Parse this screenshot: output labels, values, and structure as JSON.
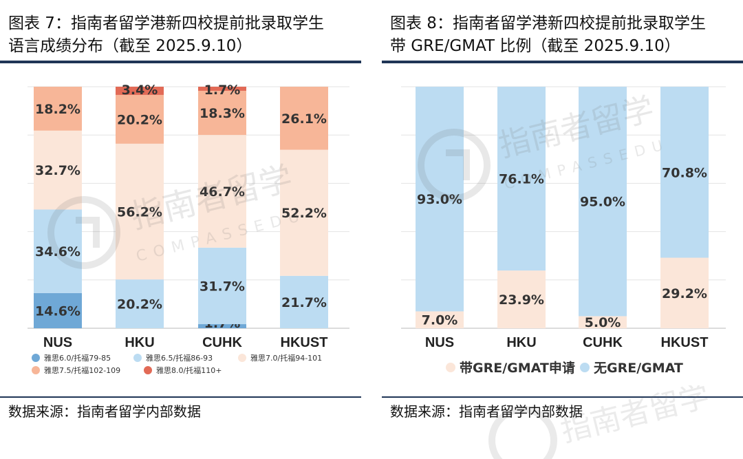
{
  "left": {
    "title": "图表 7：指南者留学港新四校提前批录取学生\n语言成绩分布（截至 2025.9.10）",
    "source": "数据来源：指南者留学内部数据"
  },
  "right": {
    "title": "图表 8：指南者留学港新四校提前批录取学生\n带 GRE/GMAT 比例（截至 2025.9.10）",
    "source": "数据来源：指南者留学内部数据"
  },
  "watermark": {
    "cn": "指南者留学",
    "en": "COMPASSEDU"
  },
  "chart_data": [
    {
      "type": "bar",
      "stacked": true,
      "categories": [
        "NUS",
        "HKU",
        "CUHK",
        "HKUST"
      ],
      "series": [
        {
          "name": "雅思6.0/托福79-85",
          "color": "#6fa8d6",
          "values": [
            14.6,
            0,
            0,
            0
          ],
          "labels": [
            "14.6%",
            "",
            "",
            ""
          ]
        },
        {
          "name": "雅思6.5/托福86-93",
          "color": "#bcdcf2",
          "values": [
            34.6,
            20.2,
            31.7,
            21.7
          ],
          "labels": [
            "34.6%",
            "20.2%",
            "31.7%",
            "21.7%"
          ]
        },
        {
          "name": "雅思7.0/托福94-101",
          "color": "#fbe6d9",
          "values": [
            32.7,
            56.2,
            46.7,
            52.2
          ],
          "labels": [
            "32.7%",
            "56.2%",
            "46.7%",
            "52.2%"
          ]
        },
        {
          "name": "雅思7.5/托福102-109",
          "color": "#f7b698",
          "values": [
            18.2,
            20.2,
            18.3,
            26.1
          ],
          "labels": [
            "18.2%",
            "20.2%",
            "18.3%",
            "26.1%"
          ]
        },
        {
          "name": "雅思8.0/托福110+",
          "color": "#e26a56",
          "values": [
            0,
            3.4,
            1.7,
            0
          ],
          "labels": [
            "",
            "3.4%",
            "1.7%",
            ""
          ]
        }
      ],
      "extra_segments": [
        {
          "category": "CUHK",
          "color": "#6fa8d6",
          "value": 1.7,
          "label": "1.7%"
        }
      ],
      "ylim": [
        0,
        100
      ],
      "grid": true,
      "legend": "bottom"
    },
    {
      "type": "bar",
      "stacked": true,
      "categories": [
        "NUS",
        "HKU",
        "CUHK",
        "HKUST"
      ],
      "series": [
        {
          "name": "带GRE/GMAT申请",
          "color": "#fbe6d9",
          "values": [
            7.0,
            23.9,
            5.0,
            29.2
          ],
          "labels": [
            "7.0%",
            "23.9%",
            "5.0%",
            "29.2%"
          ]
        },
        {
          "name": "无GRE/GMAT",
          "color": "#bcdcf2",
          "values": [
            93.0,
            76.1,
            95.0,
            70.8
          ],
          "labels": [
            "93.0%",
            "76.1%",
            "95.0%",
            "70.8%"
          ]
        }
      ],
      "ylim": [
        0,
        100
      ],
      "grid": true,
      "legend": "bottom"
    }
  ]
}
